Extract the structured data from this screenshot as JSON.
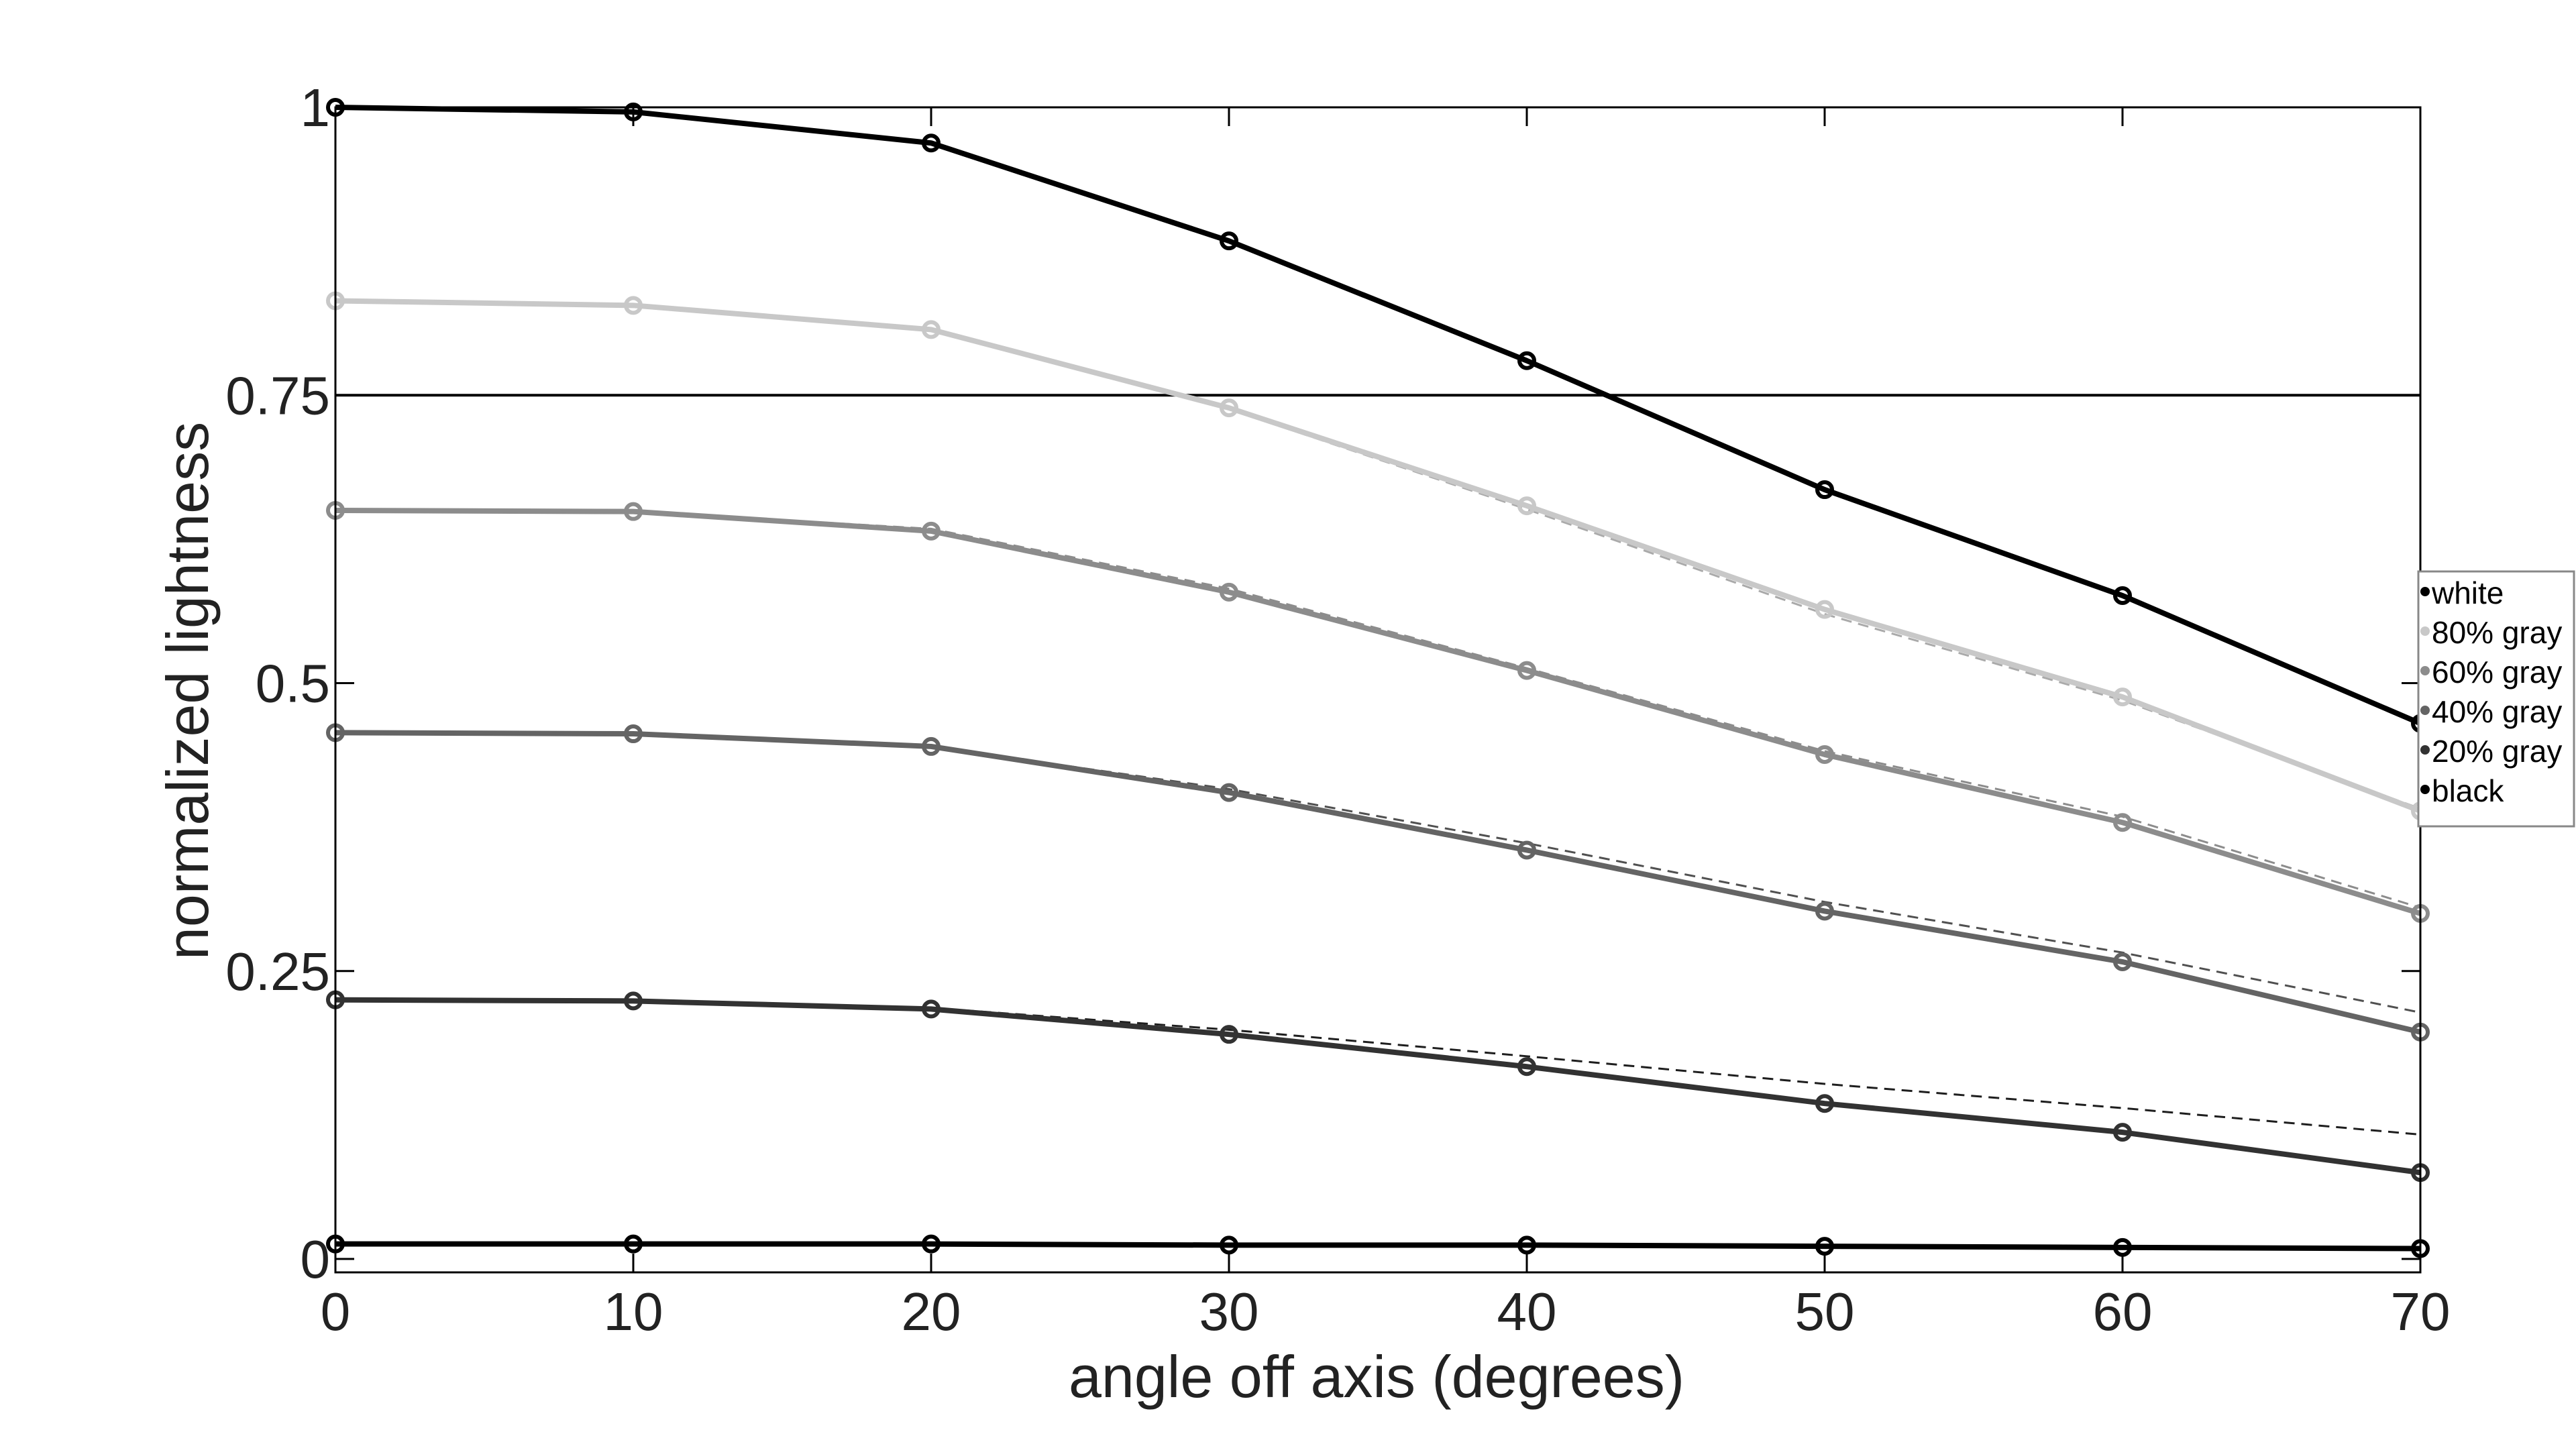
{
  "chart_data": {
    "type": "line",
    "title": "",
    "xlabel": "angle off axis (degrees)",
    "ylabel": "normalized lightness",
    "xlim": [
      0,
      70
    ],
    "ylim": [
      0,
      1
    ],
    "xticks": [
      0,
      10,
      20,
      30,
      40,
      50,
      60,
      70
    ],
    "xtick_labels": [
      "0",
      "10",
      "20",
      "30",
      "40",
      "50",
      "60",
      "70"
    ],
    "yticks": [
      0,
      0.25,
      0.5,
      0.75,
      1
    ],
    "ytick_labels": [
      "0",
      "0.25",
      "0.5",
      "0.75",
      "1"
    ],
    "grid": false,
    "reference_line": {
      "y": 0.75
    },
    "legend_position": "right",
    "x": [
      0,
      10,
      20,
      30,
      40,
      50,
      60,
      70
    ],
    "series": [
      {
        "name": "white",
        "color": "#000000",
        "values": [
          1.0,
          0.996,
          0.969,
          0.884,
          0.78,
          0.668,
          0.576,
          0.465
        ]
      },
      {
        "name": "80% gray",
        "color": "#c8c8c8",
        "values": [
          0.832,
          0.828,
          0.807,
          0.739,
          0.654,
          0.564,
          0.488,
          0.389
        ]
      },
      {
        "name": "60% gray",
        "color": "#8c8c8c",
        "values": [
          0.65,
          0.649,
          0.632,
          0.579,
          0.511,
          0.438,
          0.379,
          0.3
        ]
      },
      {
        "name": "40% gray",
        "color": "#646464",
        "values": [
          0.457,
          0.456,
          0.445,
          0.405,
          0.355,
          0.302,
          0.258,
          0.197
        ]
      },
      {
        "name": "20% gray",
        "color": "#323232",
        "values": [
          0.225,
          0.224,
          0.217,
          0.195,
          0.167,
          0.135,
          0.11,
          0.075
        ]
      },
      {
        "name": "black",
        "color": "#000000",
        "values": [
          0.013,
          0.013,
          0.013,
          0.012,
          0.012,
          0.011,
          0.01,
          0.009
        ]
      }
    ],
    "dashed_reference_series": [
      {
        "color": "#aaaaaa",
        "values": [
          0.832,
          0.828,
          0.807,
          0.738,
          0.651,
          0.56,
          0.485,
          0.391
        ]
      },
      {
        "color": "#8c8c8c",
        "values": [
          0.65,
          0.649,
          0.634,
          0.582,
          0.513,
          0.441,
          0.384,
          0.305
        ]
      },
      {
        "color": "#505050",
        "values": [
          0.457,
          0.456,
          0.445,
          0.408,
          0.361,
          0.31,
          0.266,
          0.214
        ]
      },
      {
        "color": "#1e1e1e",
        "values": [
          0.225,
          0.224,
          0.218,
          0.199,
          0.176,
          0.152,
          0.131,
          0.108
        ]
      }
    ]
  }
}
